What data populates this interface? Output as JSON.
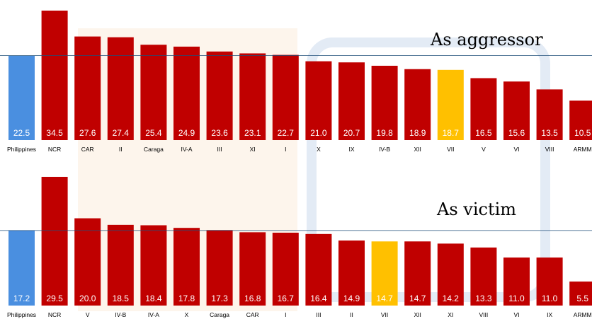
{
  "chart_data": [
    {
      "type": "bar",
      "title": "As aggressor",
      "categories": [
        "Philippines",
        "NCR",
        "CAR",
        "II",
        "Caraga",
        "IV-A",
        "III",
        "XI",
        "I",
        "X",
        "IX",
        "IV-B",
        "XII",
        "VII",
        "V",
        "VI",
        "VIII",
        "ARMM"
      ],
      "values": [
        22.5,
        34.5,
        27.6,
        27.4,
        25.4,
        24.9,
        23.6,
        23.1,
        22.7,
        21.0,
        20.7,
        19.8,
        18.9,
        18.7,
        16.5,
        15.6,
        13.5,
        10.5
      ],
      "value_labels": [
        "22.5",
        "34.5",
        "27.6",
        "27.4",
        "25.4",
        "24.9",
        "23.6",
        "23.1",
        "22.7",
        "21.0",
        "20.7",
        "19.8",
        "18.9",
        "18.7",
        "16.5",
        "15.6",
        "13.5",
        "10.5"
      ],
      "colors": [
        "#4a8fe0",
        "#c00000",
        "#c00000",
        "#c00000",
        "#c00000",
        "#c00000",
        "#c00000",
        "#c00000",
        "#c00000",
        "#c00000",
        "#c00000",
        "#c00000",
        "#c00000",
        "#ffc000",
        "#c00000",
        "#c00000",
        "#c00000",
        "#c00000"
      ]
    },
    {
      "type": "bar",
      "title": "As victim",
      "categories": [
        "Philippines",
        "NCR",
        "V",
        "IV-B",
        "IV-A",
        "X",
        "Caraga",
        "CAR",
        "I",
        "III",
        "II",
        "VII",
        "XII",
        "XI",
        "VIII",
        "VI",
        "IX",
        "ARMM"
      ],
      "values": [
        17.2,
        29.5,
        20.0,
        18.5,
        18.4,
        17.8,
        17.3,
        16.8,
        16.7,
        16.4,
        14.9,
        14.7,
        14.7,
        14.2,
        13.3,
        11.0,
        11.0,
        5.5
      ],
      "value_labels": [
        "17.2",
        "29.5",
        "20.0",
        "18.5",
        "18.4",
        "17.8",
        "17.3",
        "16.8",
        "16.7",
        "16.4",
        "14.9",
        "14.7",
        "14.7",
        "14.2",
        "13.3",
        "11.0",
        "11.0",
        "5.5"
      ],
      "colors": [
        "#4a8fe0",
        "#c00000",
        "#c00000",
        "#c00000",
        "#c00000",
        "#c00000",
        "#c00000",
        "#c00000",
        "#c00000",
        "#c00000",
        "#c00000",
        "#ffc000",
        "#c00000",
        "#c00000",
        "#c00000",
        "#c00000",
        "#c00000",
        "#c00000"
      ]
    }
  ]
}
